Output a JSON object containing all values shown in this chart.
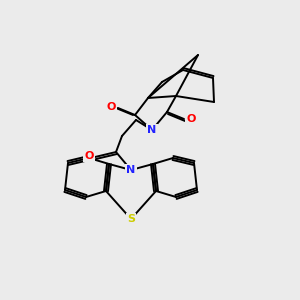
{
  "bg_color": "#ebebeb",
  "atom_colors": {
    "O": "#ff0000",
    "N": "#2222ff",
    "S": "#cccc00",
    "C": "#000000"
  },
  "line_color": "#000000",
  "line_width": 1.4,
  "fig_size": [
    3.0,
    3.0
  ],
  "dpi": 100
}
